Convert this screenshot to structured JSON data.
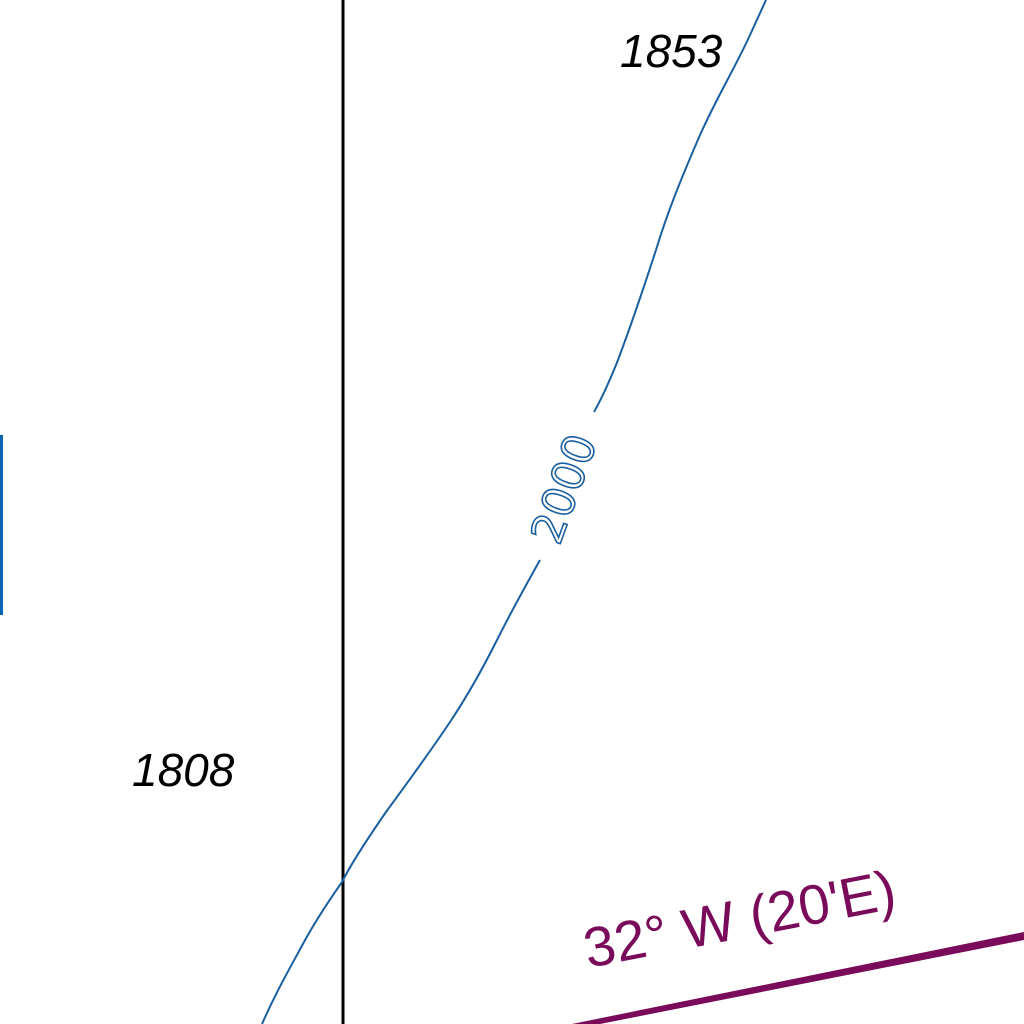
{
  "colors": {
    "background": "#ffffff",
    "meridian_line": "#000000",
    "depth_contour": "#1a5fa0",
    "edge_feature": "#0a64b4",
    "magnetic_variation": "#7a0a5a"
  },
  "soundings": [
    {
      "value": "1853"
    },
    {
      "value": "1808"
    }
  ],
  "depth_contour": {
    "label": "2000"
  },
  "magnetic_variation": {
    "label": "32° W (20'E)"
  }
}
